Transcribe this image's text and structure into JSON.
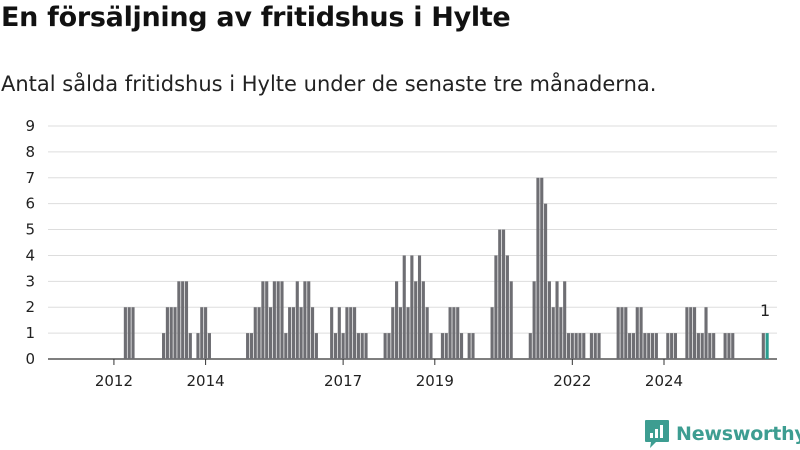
{
  "title": "En försäljning av fritidshus i Hylte",
  "subtitle": "Antal sålda fritidshus i Hylte under de senaste tre månaderna.",
  "brand": {
    "name": "Newsworthy",
    "color": "#3d9d91",
    "icon": "newsworthy-logo-icon"
  },
  "colors": {
    "bar": "#6e6e73",
    "highlight": "#2a9d8f",
    "grid": "#dddddd"
  },
  "chart_data": {
    "type": "bar",
    "title": "",
    "xlabel": "",
    "ylabel": "",
    "ylim": [
      0,
      9
    ],
    "yticks": [
      0,
      1,
      2,
      3,
      4,
      5,
      6,
      7,
      8,
      9
    ],
    "xticks": [
      "2012",
      "2014",
      "2017",
      "2019",
      "2022",
      "2024"
    ],
    "grid": true,
    "legend": "none",
    "start_month": "2011-01",
    "values": [
      0,
      0,
      0,
      0,
      0,
      0,
      0,
      0,
      0,
      0,
      0,
      0,
      0,
      0,
      0,
      0,
      0,
      0,
      0,
      0,
      0,
      2,
      2,
      2,
      0,
      0,
      0,
      0,
      0,
      0,
      0,
      1,
      2,
      2,
      2,
      3,
      3,
      3,
      1,
      0,
      1,
      2,
      2,
      1,
      0,
      0,
      0,
      0,
      0,
      0,
      0,
      0,
      0,
      1,
      1,
      2,
      2,
      3,
      3,
      2,
      3,
      3,
      3,
      1,
      2,
      2,
      3,
      2,
      3,
      3,
      2,
      1,
      0,
      0,
      0,
      2,
      1,
      2,
      1,
      2,
      2,
      2,
      1,
      1,
      1,
      0,
      0,
      0,
      0,
      1,
      1,
      2,
      3,
      2,
      4,
      2,
      4,
      3,
      4,
      3,
      2,
      1,
      0,
      0,
      1,
      1,
      2,
      2,
      2,
      1,
      0,
      1,
      1,
      0,
      0,
      0,
      0,
      2,
      4,
      5,
      5,
      4,
      3,
      0,
      0,
      0,
      0,
      1,
      3,
      7,
      7,
      6,
      3,
      2,
      3,
      2,
      3,
      1,
      1,
      1,
      1,
      1,
      0,
      1,
      1,
      1,
      0,
      0,
      0,
      0,
      2,
      2,
      2,
      1,
      1,
      2,
      2,
      1,
      1,
      1,
      1,
      0,
      0,
      1,
      1,
      1,
      0,
      0,
      2,
      2,
      2,
      1,
      1,
      2,
      1,
      1,
      0,
      0,
      1,
      1,
      1,
      0,
      0,
      0,
      0,
      0,
      0,
      0,
      1,
      1
    ],
    "highlight_index": 189,
    "annotations": [
      {
        "index": 189,
        "text": "1"
      }
    ]
  }
}
